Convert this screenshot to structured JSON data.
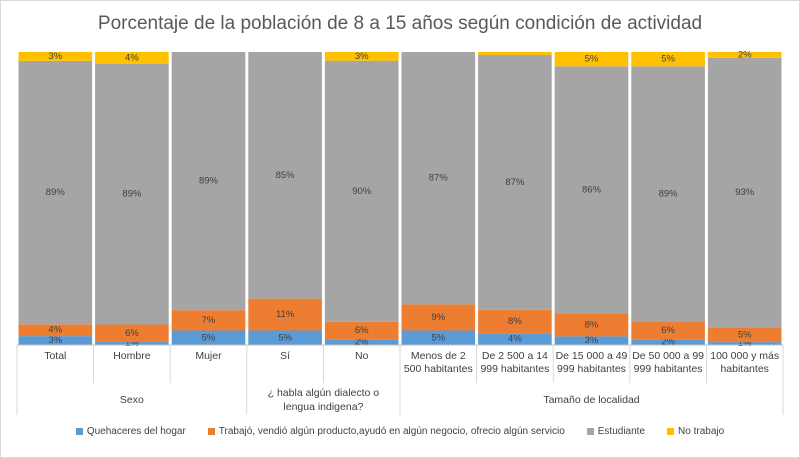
{
  "chart_data": {
    "type": "bar",
    "stacked": "percent",
    "title": "Porcentaje de la población de 8 a 15 años según condición de actividad",
    "categories": [
      "Total",
      "Hombre",
      "Mujer",
      "Sí",
      "No",
      "Menos de 2 500 habitantes",
      "De 2 500 a 14 999 habitantes",
      "De 15 000 a 49 999 habitantes",
      "De 50 000 a 99 999 habitantes",
      "100 000 y más habitantes"
    ],
    "groups": [
      {
        "label": "Sexo",
        "span": 3
      },
      {
        "label": "¿ habla algún dialecto o lengua indigena?",
        "span": 2
      },
      {
        "label": "Tamaño de localidad",
        "span": 5
      }
    ],
    "series": [
      {
        "name": "Quehaceres del hogar",
        "color": "#5b9bd5",
        "values": [
          3,
          1,
          5,
          5,
          2,
          5,
          4,
          3,
          2,
          1
        ],
        "value_labels": [
          "3%",
          "1%",
          "5%",
          "5%",
          "2%",
          "5%",
          "4%",
          "3%",
          "2%",
          "1%"
        ]
      },
      {
        "name": "Trabajó, vendió algún producto,ayudó en algún negocio, ofrecio algún servicio",
        "color": "#ed7d31",
        "values": [
          4,
          6,
          7,
          11,
          6,
          9,
          8,
          8,
          6,
          5
        ],
        "value_labels": [
          "4%",
          "6%",
          "7%",
          "11%",
          "6%",
          "9%",
          "8%",
          "8%",
          "6%",
          "5%"
        ]
      },
      {
        "name": "Estudiante",
        "color": "#a5a5a5",
        "values": [
          89,
          89,
          89,
          85,
          90,
          87,
          87,
          86,
          89,
          93
        ],
        "value_labels": [
          "89%",
          "89%",
          "89%",
          "85%",
          "90%",
          "87%",
          "87%",
          "86%",
          "89%",
          "93%"
        ]
      },
      {
        "name": "No trabajo",
        "color": "#ffc000",
        "values": [
          3,
          4,
          0,
          0,
          3,
          0,
          1,
          5,
          5,
          2
        ],
        "value_labels": [
          "3%",
          "4%",
          null,
          null,
          "3%",
          null,
          null,
          "5%",
          "5%",
          "2%"
        ]
      }
    ]
  }
}
